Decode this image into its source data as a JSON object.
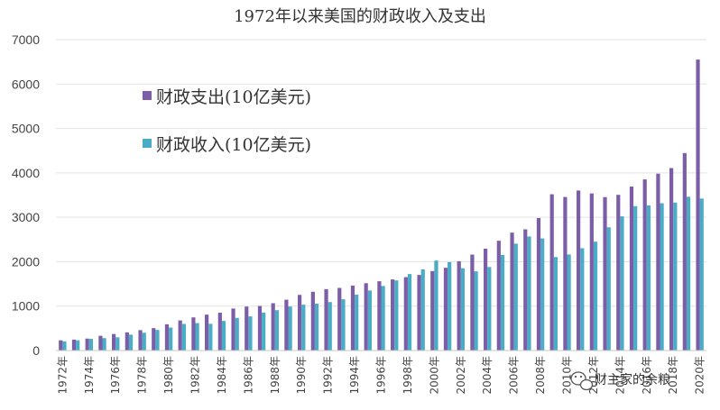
{
  "chart_data": {
    "type": "bar",
    "title": "1972年以来美国的财政收入及支出",
    "xlabel": "",
    "ylabel": "",
    "ylim": [
      0,
      7000
    ],
    "yticks": [
      0,
      1000,
      2000,
      3000,
      4000,
      5000,
      6000,
      7000
    ],
    "grid": true,
    "legend_position": "left-upper",
    "categories": [
      "1972年",
      "1973年",
      "1974年",
      "1975年",
      "1976年",
      "1977年",
      "1978年",
      "1979年",
      "1980年",
      "1981年",
      "1982年",
      "1983年",
      "1984年",
      "1985年",
      "1986年",
      "1987年",
      "1988年",
      "1989年",
      "1990年",
      "1991年",
      "1992年",
      "1993年",
      "1994年",
      "1995年",
      "1996年",
      "1997年",
      "1998年",
      "1999年",
      "2000年",
      "2001年",
      "2002年",
      "2003年",
      "2004年",
      "2005年",
      "2006年",
      "2007年",
      "2008年",
      "2009年",
      "2010年",
      "2011年",
      "2012年",
      "2013年",
      "2014年",
      "2015年",
      "2016年",
      "2017年",
      "2018年",
      "2019年",
      "2020年"
    ],
    "tick_labels": [
      "1972年",
      "1974年",
      "1976年",
      "1978年",
      "1980年",
      "1982年",
      "1984年",
      "1986年",
      "1988年",
      "1990年",
      "1992年",
      "1994年",
      "1996年",
      "1998年",
      "2000年",
      "2002年",
      "2004年",
      "2006年",
      "2008年",
      "2010年",
      "2012年",
      "2014年",
      "2016年",
      "2018年",
      "2020年"
    ],
    "series": [
      {
        "name": "财政支出(10亿美元)",
        "color": "#7b5ea7",
        "values": [
          230,
          246,
          269,
          332,
          372,
          409,
          459,
          504,
          591,
          678,
          746,
          808,
          852,
          946,
          990,
          1004,
          1065,
          1144,
          1253,
          1324,
          1382,
          1410,
          1462,
          1516,
          1560,
          1601,
          1652,
          1702,
          1789,
          1863,
          2011,
          2160,
          2293,
          2472,
          2655,
          2729,
          2983,
          3518,
          3457,
          3603,
          3537,
          3455,
          3506,
          3692,
          3853,
          3982,
          4109,
          4447,
          6552
        ]
      },
      {
        "name": "财政收入(10亿美元)",
        "color": "#4aacc5",
        "values": [
          207,
          231,
          263,
          279,
          298,
          356,
          400,
          463,
          517,
          599,
          618,
          601,
          666,
          734,
          769,
          854,
          909,
          991,
          1032,
          1055,
          1091,
          1154,
          1259,
          1352,
          1453,
          1579,
          1722,
          1827,
          2025,
          1991,
          1853,
          1782,
          1880,
          2153,
          2406,
          2568,
          2524,
          2105,
          2163,
          2303,
          2450,
          2775,
          3021,
          3250,
          3268,
          3316,
          3330,
          3463,
          3421
        ]
      }
    ]
  },
  "watermark": {
    "icon": "wechat-icon",
    "text": "财主家的余粮"
  }
}
